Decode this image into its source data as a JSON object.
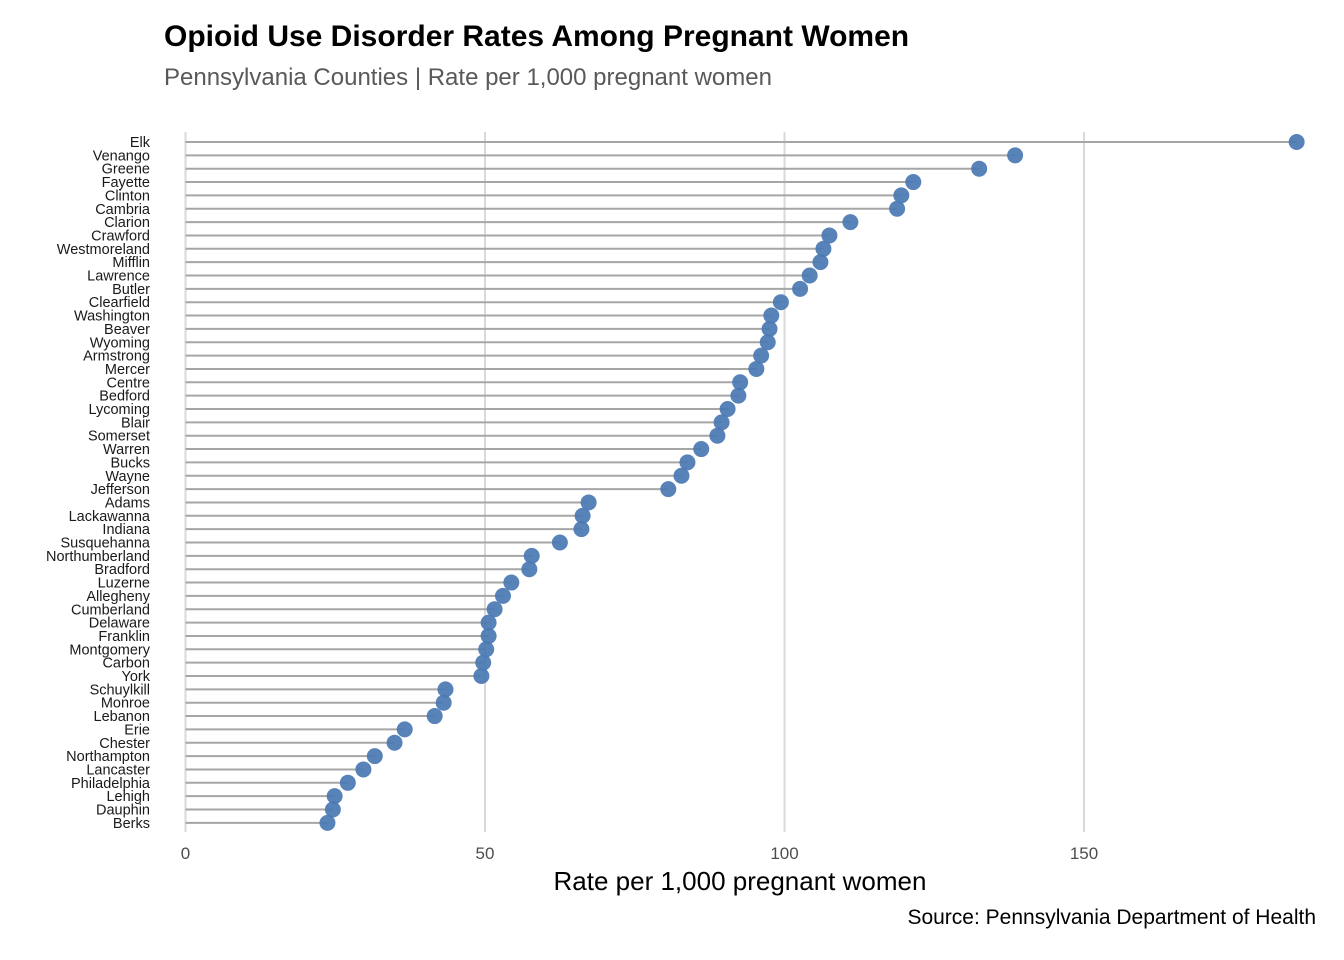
{
  "title": "Opioid Use Disorder Rates Among Pregnant Women",
  "subtitle": "Pennsylvania Counties | Rate per 1,000 pregnant women",
  "caption": "Source: Pennsylvania Department of Health",
  "colors": {
    "point": "#4A78B3",
    "stem": "#A6A6A6",
    "grid": "#D9D9D9"
  },
  "chart_data": {
    "type": "lollipop",
    "xlabel": "Rate per 1,000 pregnant women",
    "ylabel": "",
    "xlim": [
      0,
      186
    ],
    "x_ticks": [
      0,
      50,
      100,
      150
    ],
    "grid": "vertical major gridlines",
    "legend": "none",
    "categories": [
      "Elk",
      "Venango",
      "Greene",
      "Fayette",
      "Clinton",
      "Cambria",
      "Clarion",
      "Crawford",
      "Westmoreland",
      "Mifflin",
      "Lawrence",
      "Butler",
      "Clearfield",
      "Washington",
      "Beaver",
      "Wyoming",
      "Armstrong",
      "Mercer",
      "Centre",
      "Bedford",
      "Lycoming",
      "Blair",
      "Somerset",
      "Warren",
      "Bucks",
      "Wayne",
      "Jefferson",
      "Adams",
      "Lackawanna",
      "Indiana",
      "Susquehanna",
      "Northumberland",
      "Bradford",
      "Luzerne",
      "Allegheny",
      "Cumberland",
      "Delaware",
      "Franklin",
      "Montgomery",
      "Carbon",
      "York",
      "Schuylkill",
      "Monroe",
      "Lebanon",
      "Erie",
      "Chester",
      "Northampton",
      "Lancaster",
      "Philadelphia",
      "Lehigh",
      "Dauphin",
      "Berks"
    ],
    "values": [
      185.5,
      138.5,
      132.5,
      121.5,
      119.5,
      118.8,
      111,
      107.5,
      106.5,
      106,
      104.2,
      102.6,
      99.4,
      97.8,
      97.5,
      97.2,
      96.1,
      95.3,
      92.6,
      92.3,
      90.5,
      89.5,
      88.8,
      86.1,
      83.8,
      82.8,
      80.6,
      67.3,
      66.3,
      66.1,
      62.5,
      57.8,
      57.4,
      54.4,
      53,
      51.6,
      50.6,
      50.6,
      50.2,
      49.7,
      49.4,
      43.4,
      43.1,
      41.6,
      36.6,
      34.9,
      31.6,
      29.7,
      27.1,
      24.9,
      24.6,
      23.7
    ]
  }
}
